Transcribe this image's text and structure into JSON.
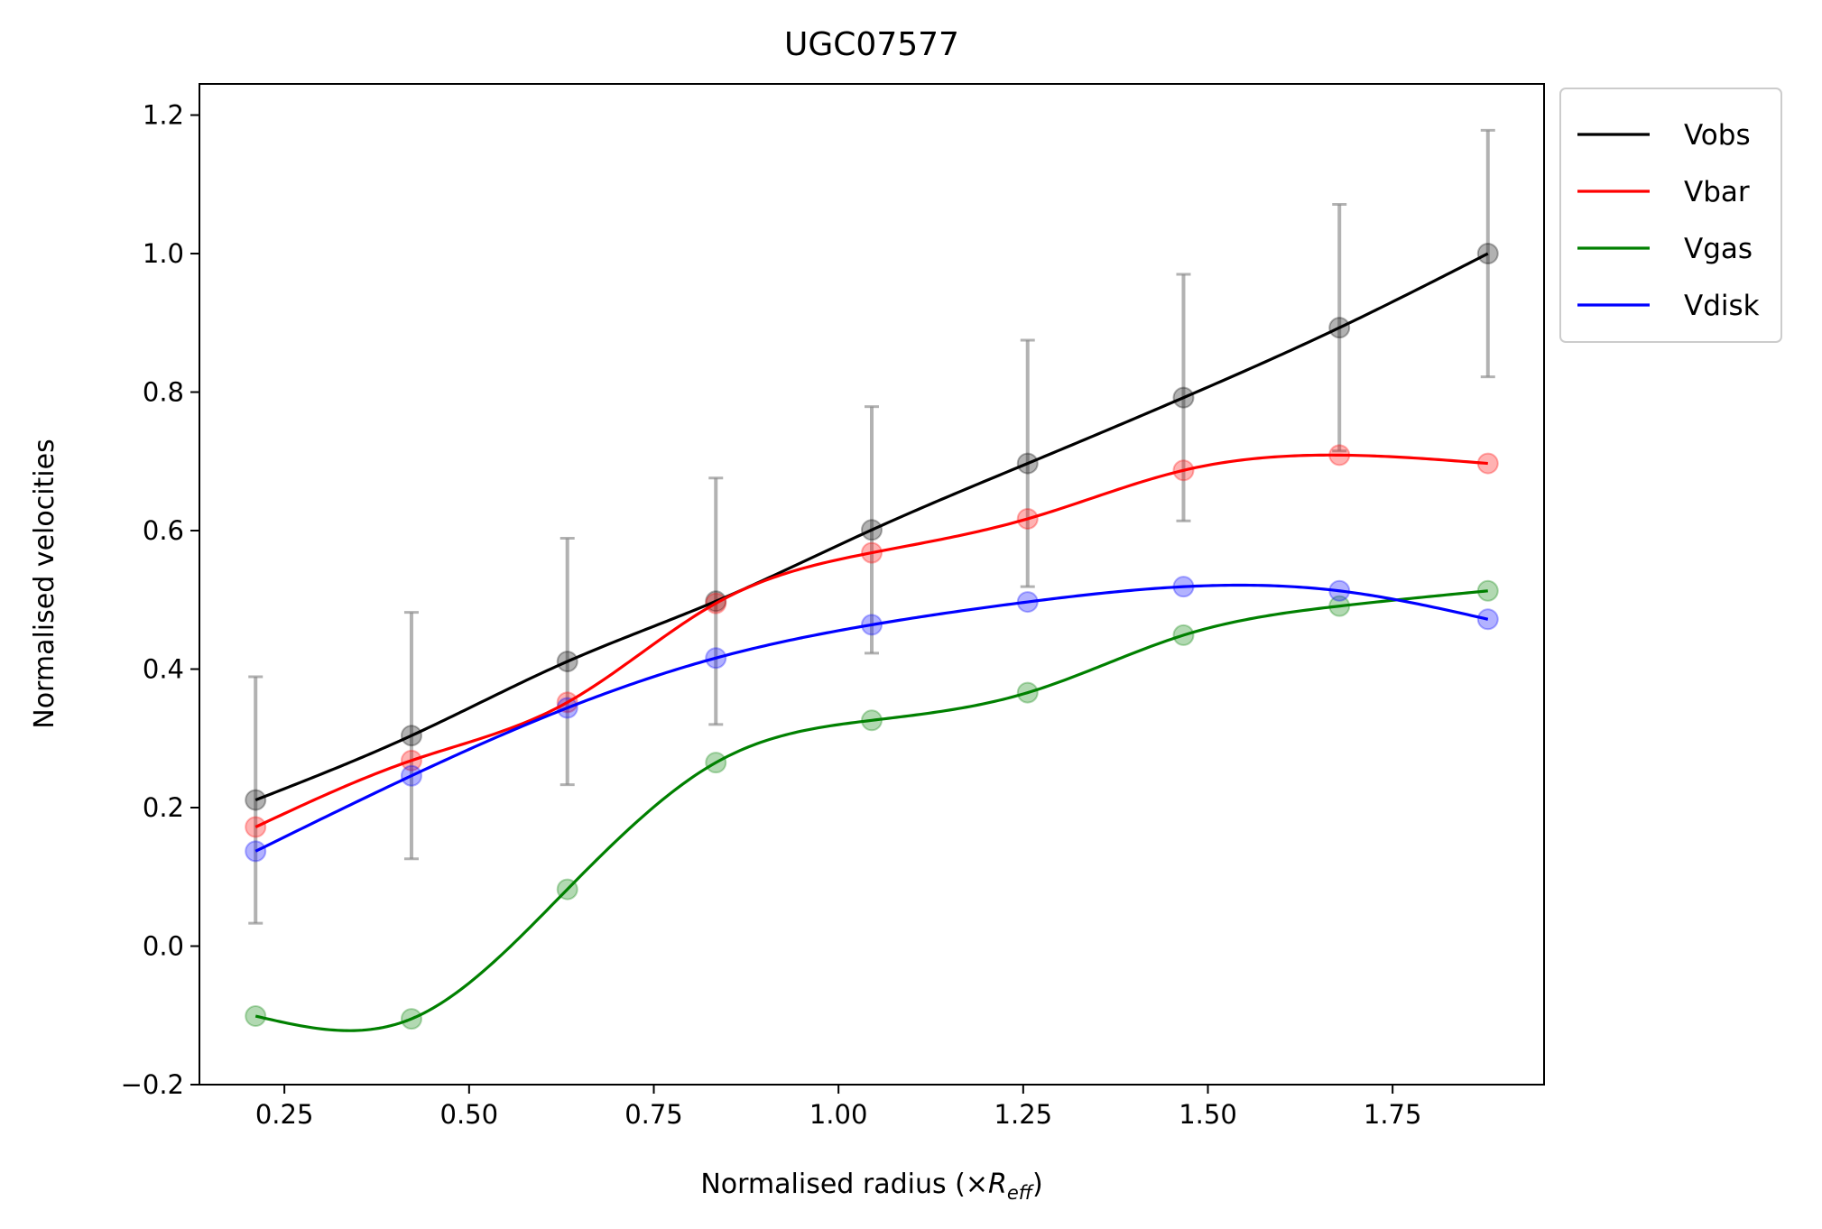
{
  "chart_data": {
    "type": "line",
    "title": "UGC07577",
    "xlabel": "Normalised radius (×",
    "xlabel_math": "R",
    "xlabel_sub": "eff",
    "xlabel_close": ")",
    "ylabel": "Normalised velocities",
    "xlim": [
      0.135,
      1.955
    ],
    "ylim": [
      -0.2,
      1.245
    ],
    "xticks": [
      0.25,
      0.5,
      0.75,
      1.0,
      1.25,
      1.5,
      1.75
    ],
    "xtick_labels": [
      "0.25",
      "0.50",
      "0.75",
      "1.00",
      "1.25",
      "1.50",
      "1.75"
    ],
    "yticks": [
      -0.2,
      0.0,
      0.2,
      0.4,
      0.6,
      0.8,
      1.0,
      1.2
    ],
    "ytick_labels": [
      "−0.2",
      "0.0",
      "0.2",
      "0.4",
      "0.6",
      "0.8",
      "1.0",
      "1.2"
    ],
    "legend_placement": "outside-upper-right",
    "x": [
      0.211,
      0.422,
      0.633,
      0.834,
      1.045,
      1.256,
      1.467,
      1.678,
      1.879
    ],
    "series": [
      {
        "name": "Vobs",
        "color": "#000000",
        "values": [
          0.211,
          0.304,
          0.411,
          0.498,
          0.601,
          0.697,
          0.792,
          0.893,
          1.0
        ],
        "errors": [
          0.178,
          0.178,
          0.178,
          0.178,
          0.178,
          0.178,
          0.178,
          0.178,
          0.178
        ]
      },
      {
        "name": "Vbar",
        "color": "#ff0000",
        "values": [
          0.172,
          0.268,
          0.352,
          0.495,
          0.568,
          0.617,
          0.687,
          0.709,
          0.697
        ]
      },
      {
        "name": "Vgas",
        "color": "#008000",
        "values": [
          -0.101,
          -0.105,
          0.082,
          0.265,
          0.326,
          0.366,
          0.449,
          0.491,
          0.513
        ]
      },
      {
        "name": "Vdisk",
        "color": "#0000ff",
        "values": [
          0.137,
          0.246,
          0.344,
          0.416,
          0.464,
          0.497,
          0.519,
          0.513,
          0.472
        ]
      }
    ]
  }
}
